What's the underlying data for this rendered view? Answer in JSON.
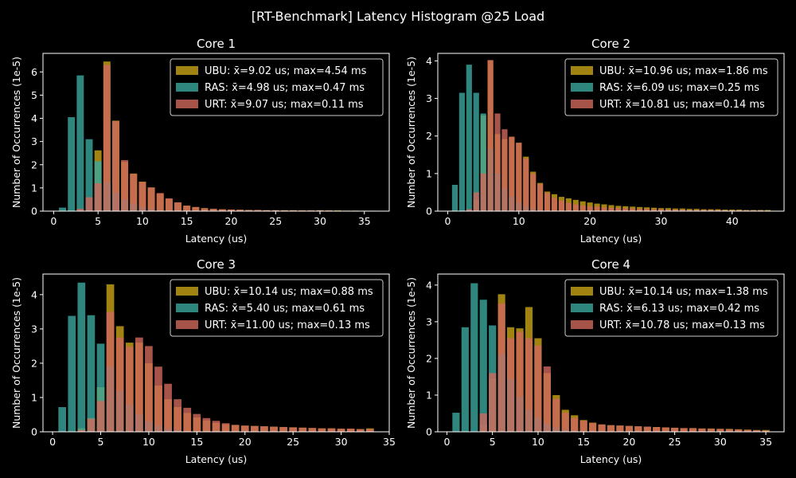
{
  "suptitle": "[RT-Benchmark] Latency Histogram @25 Load",
  "colors": {
    "UBU": "#c8a414",
    "RAS": "#3aa89f",
    "URT": "#d0685c",
    "background": "#000000",
    "foreground": "#ffffff"
  },
  "series_order": [
    "UBU",
    "RAS",
    "URT"
  ],
  "chart_data": [
    {
      "type": "bar",
      "title": "Core 1",
      "xlabel": "Latency (us)",
      "ylabel": "Number of Occurrences (1e-5)",
      "xlim": [
        -1.2,
        37.8
      ],
      "ylim": [
        0,
        6.8
      ],
      "xticks": [
        0,
        5,
        10,
        15,
        20,
        25,
        30,
        35
      ],
      "yticks": [
        0,
        1,
        2,
        3,
        4,
        5,
        6
      ],
      "legend_position": "top-right",
      "legend": [
        "UBU: x̄=9.02 us; max=4.54 ms",
        "RAS: x̄=4.98 us; max=0.47 ms",
        "URT: x̄=9.07 us; max=0.11 ms"
      ],
      "series": [
        {
          "name": "UBU",
          "x": [
            1,
            2,
            3,
            4,
            5,
            6,
            7,
            8,
            9,
            10,
            11,
            12,
            13,
            14,
            15,
            16,
            17,
            18,
            19,
            20,
            21,
            22,
            23,
            24,
            25,
            26,
            27,
            28,
            29,
            30,
            31,
            32,
            33,
            34,
            35,
            36
          ],
          "values": [
            0,
            0,
            0,
            0.05,
            2.62,
            6.45,
            3.9,
            2.12,
            1.62,
            1.27,
            1.02,
            0.75,
            0.53,
            0.37,
            0.23,
            0.17,
            0.13,
            0.1,
            0.08,
            0.07,
            0.06,
            0.05,
            0.05,
            0.04,
            0.04,
            0.04,
            0.04,
            0.03,
            0.03,
            0.04,
            0.03,
            0.03,
            0.02,
            0.02,
            0.02,
            0.02
          ]
        },
        {
          "name": "RAS",
          "x": [
            1,
            2,
            3,
            4,
            5,
            6,
            7,
            8,
            9,
            10,
            11
          ],
          "values": [
            0.15,
            4.05,
            5.85,
            3.1,
            2.15,
            1.25,
            0.8,
            0.5,
            0.32,
            0.18,
            0.1
          ]
        },
        {
          "name": "URT",
          "x": [
            1,
            2,
            3,
            4,
            5,
            6,
            7,
            8,
            9,
            10,
            11,
            12,
            13,
            14,
            15,
            16,
            17,
            18,
            19,
            20,
            21,
            22,
            23,
            24,
            25,
            26,
            27,
            28,
            29,
            30,
            31,
            32,
            33,
            34,
            35,
            36
          ],
          "values": [
            0,
            0,
            0.1,
            0.6,
            1.2,
            6.3,
            3.88,
            2.2,
            1.6,
            1.25,
            1.02,
            0.78,
            0.55,
            0.38,
            0.24,
            0.18,
            0.12,
            0.1,
            0.08,
            0.07,
            0.06,
            0.05,
            0.05,
            0.04,
            0.04,
            0.03,
            0.03,
            0.03,
            0.03,
            0.03,
            0.03,
            0.02,
            0.02,
            0.02,
            0.01,
            0.01
          ]
        }
      ]
    },
    {
      "type": "bar",
      "title": "Core 2",
      "xlabel": "Latency (us)",
      "ylabel": "Number of Occurrences (1e-5)",
      "xlim": [
        -1.4,
        47.3
      ],
      "ylim": [
        0,
        4.2
      ],
      "xticks": [
        0,
        10,
        20,
        30,
        40
      ],
      "yticks": [
        0,
        1,
        2,
        3,
        4
      ],
      "legend_position": "top-right",
      "legend": [
        "UBU: x̄=10.96 us; max=1.86 ms",
        "RAS: x̄=6.09 us; max=0.25 ms",
        "URT: x̄=10.81 us; max=0.14 ms"
      ],
      "series": [
        {
          "name": "UBU",
          "x": [
            1,
            2,
            3,
            4,
            5,
            6,
            7,
            8,
            9,
            10,
            11,
            12,
            13,
            14,
            15,
            16,
            17,
            18,
            19,
            20,
            21,
            22,
            23,
            24,
            25,
            26,
            27,
            28,
            29,
            30,
            31,
            32,
            33,
            34,
            35,
            36,
            37,
            38,
            39,
            40,
            41,
            42,
            43,
            44,
            45
          ],
          "values": [
            0,
            0,
            0,
            0.3,
            2.55,
            4.02,
            2.05,
            1.92,
            1.98,
            1.82,
            1.45,
            1.05,
            0.75,
            0.52,
            0.45,
            0.38,
            0.34,
            0.3,
            0.26,
            0.23,
            0.2,
            0.18,
            0.16,
            0.14,
            0.13,
            0.12,
            0.11,
            0.1,
            0.09,
            0.08,
            0.08,
            0.07,
            0.07,
            0.06,
            0.06,
            0.05,
            0.05,
            0.05,
            0.04,
            0.04,
            0.04,
            0.03,
            0.03,
            0.03,
            0.03
          ]
        },
        {
          "name": "RAS",
          "x": [
            1,
            2,
            3,
            4,
            5,
            6,
            7,
            8,
            9,
            10,
            11,
            12,
            13
          ],
          "values": [
            0.7,
            3.15,
            3.9,
            3.15,
            2.6,
            1.65,
            1.0,
            0.6,
            0.38,
            0.22,
            0.12,
            0.06,
            0.03
          ]
        },
        {
          "name": "URT",
          "x": [
            1,
            2,
            3,
            4,
            5,
            6,
            7,
            8,
            9,
            10,
            11,
            12,
            13,
            14,
            15,
            16,
            17,
            18,
            19,
            20,
            21,
            22,
            23,
            24,
            25,
            26,
            27,
            28,
            29,
            30,
            31,
            32,
            33,
            34,
            35,
            36,
            37,
            38,
            39,
            40,
            41,
            42,
            43,
            44,
            45
          ],
          "values": [
            0,
            0,
            0.05,
            0.5,
            1.0,
            4.02,
            2.6,
            2.18,
            1.98,
            1.82,
            1.4,
            1.0,
            0.72,
            0.48,
            0.35,
            0.28,
            0.22,
            0.18,
            0.15,
            0.13,
            0.12,
            0.1,
            0.09,
            0.08,
            0.08,
            0.07,
            0.06,
            0.06,
            0.05,
            0.05,
            0.04,
            0.04,
            0.04,
            0.03,
            0.03,
            0.03,
            0.03,
            0.03,
            0.02,
            0.02,
            0.02,
            0.02,
            0.02,
            0.02,
            0.01
          ]
        }
      ]
    },
    {
      "type": "bar",
      "title": "Core 3",
      "xlabel": "Latency (us)",
      "ylabel": "Number of Occurrences (1e-5)",
      "xlim": [
        -1.0,
        35.0
      ],
      "ylim": [
        0,
        4.6
      ],
      "xticks": [
        0,
        5,
        10,
        15,
        20,
        25,
        30,
        35
      ],
      "yticks": [
        0,
        1,
        2,
        3,
        4
      ],
      "legend_position": "top-right",
      "legend": [
        "UBU: x̄=10.14 us; max=0.88 ms",
        "RAS: x̄=5.40 us; max=0.61 ms",
        "URT: x̄=11.00 us; max=0.13 ms"
      ],
      "series": [
        {
          "name": "UBU",
          "x": [
            1,
            2,
            3,
            4,
            5,
            6,
            7,
            8,
            9,
            10,
            11,
            12,
            13,
            14,
            15,
            16,
            17,
            18,
            19,
            20,
            21,
            22,
            23,
            24,
            25,
            26,
            27,
            28,
            29,
            30,
            31,
            32,
            33
          ],
          "values": [
            0,
            0,
            0.1,
            0.4,
            1.3,
            4.3,
            3.08,
            2.6,
            2.6,
            2.0,
            1.35,
            0.95,
            0.72,
            0.55,
            0.42,
            0.33,
            0.26,
            0.22,
            0.2,
            0.18,
            0.17,
            0.16,
            0.15,
            0.14,
            0.13,
            0.12,
            0.11,
            0.1,
            0.1,
            0.09,
            0.09,
            0.08,
            0.1
          ]
        },
        {
          "name": "RAS",
          "x": [
            1,
            2,
            3,
            4,
            5,
            6,
            7,
            8,
            9,
            10,
            11,
            12,
            13
          ],
          "values": [
            0.72,
            3.38,
            4.35,
            3.4,
            2.57,
            1.9,
            1.2,
            0.8,
            0.5,
            0.3,
            0.18,
            0.1,
            0.05
          ]
        },
        {
          "name": "URT",
          "x": [
            1,
            2,
            3,
            4,
            5,
            6,
            7,
            8,
            9,
            10,
            11,
            12,
            13,
            14,
            15,
            16,
            17,
            18,
            19,
            20,
            21,
            22,
            23,
            24,
            25,
            26,
            27,
            28,
            29,
            30,
            31,
            32,
            33
          ],
          "values": [
            0,
            0,
            0.05,
            0.38,
            0.9,
            3.5,
            2.75,
            2.48,
            2.75,
            2.5,
            1.9,
            1.4,
            0.95,
            0.7,
            0.52,
            0.4,
            0.32,
            0.25,
            0.2,
            0.18,
            0.17,
            0.16,
            0.15,
            0.14,
            0.13,
            0.12,
            0.11,
            0.1,
            0.1,
            0.09,
            0.09,
            0.08,
            0.08
          ]
        }
      ]
    },
    {
      "type": "bar",
      "title": "Core 4",
      "xlabel": "Latency (us)",
      "ylabel": "Number of Occurrences (1e-5)",
      "xlim": [
        -1.0,
        37.0
      ],
      "ylim": [
        0,
        4.3
      ],
      "xticks": [
        0,
        5,
        10,
        15,
        20,
        25,
        30,
        35
      ],
      "yticks": [
        0,
        1,
        2,
        3,
        4
      ],
      "legend_position": "top-right",
      "legend": [
        "UBU: x̄=10.14 us; max=1.38 ms",
        "RAS: x̄=6.13 us; max=0.42 ms",
        "URT: x̄=10.78 us; max=0.13 ms"
      ],
      "series": [
        {
          "name": "UBU",
          "x": [
            1,
            2,
            3,
            4,
            5,
            6,
            7,
            8,
            9,
            10,
            11,
            12,
            13,
            14,
            15,
            16,
            17,
            18,
            19,
            20,
            21,
            22,
            23,
            24,
            25,
            26,
            27,
            28,
            29,
            30,
            31,
            32,
            33,
            34,
            35
          ],
          "values": [
            0,
            0,
            0,
            0.2,
            1.45,
            3.75,
            2.85,
            2.82,
            3.4,
            2.55,
            1.6,
            1.0,
            0.6,
            0.45,
            0.32,
            0.25,
            0.2,
            0.18,
            0.17,
            0.16,
            0.15,
            0.14,
            0.13,
            0.12,
            0.11,
            0.1,
            0.1,
            0.09,
            0.09,
            0.08,
            0.08,
            0.07,
            0.06,
            0.05,
            0.05
          ]
        },
        {
          "name": "RAS",
          "x": [
            1,
            2,
            3,
            4,
            5,
            6,
            7,
            8,
            9,
            10,
            11,
            12,
            13,
            14
          ],
          "values": [
            0.52,
            2.85,
            4.05,
            3.6,
            2.9,
            2.12,
            1.45,
            0.95,
            0.6,
            0.38,
            0.22,
            0.12,
            0.06,
            0.03
          ]
        },
        {
          "name": "URT",
          "x": [
            1,
            2,
            3,
            4,
            5,
            6,
            7,
            8,
            9,
            10,
            11,
            12,
            13,
            14,
            15,
            16,
            17,
            18,
            19,
            20,
            21,
            22,
            23,
            24,
            25,
            26,
            27,
            28,
            29,
            30,
            31,
            32,
            33,
            34,
            35
          ],
          "values": [
            0,
            0,
            0,
            0.5,
            1.6,
            3.5,
            2.55,
            2.72,
            2.55,
            2.35,
            1.78,
            0.9,
            0.52,
            0.38,
            0.3,
            0.24,
            0.2,
            0.18,
            0.17,
            0.16,
            0.15,
            0.14,
            0.13,
            0.12,
            0.11,
            0.1,
            0.1,
            0.09,
            0.08,
            0.08,
            0.07,
            0.06,
            0.05,
            0.04,
            0.03
          ]
        }
      ]
    }
  ]
}
